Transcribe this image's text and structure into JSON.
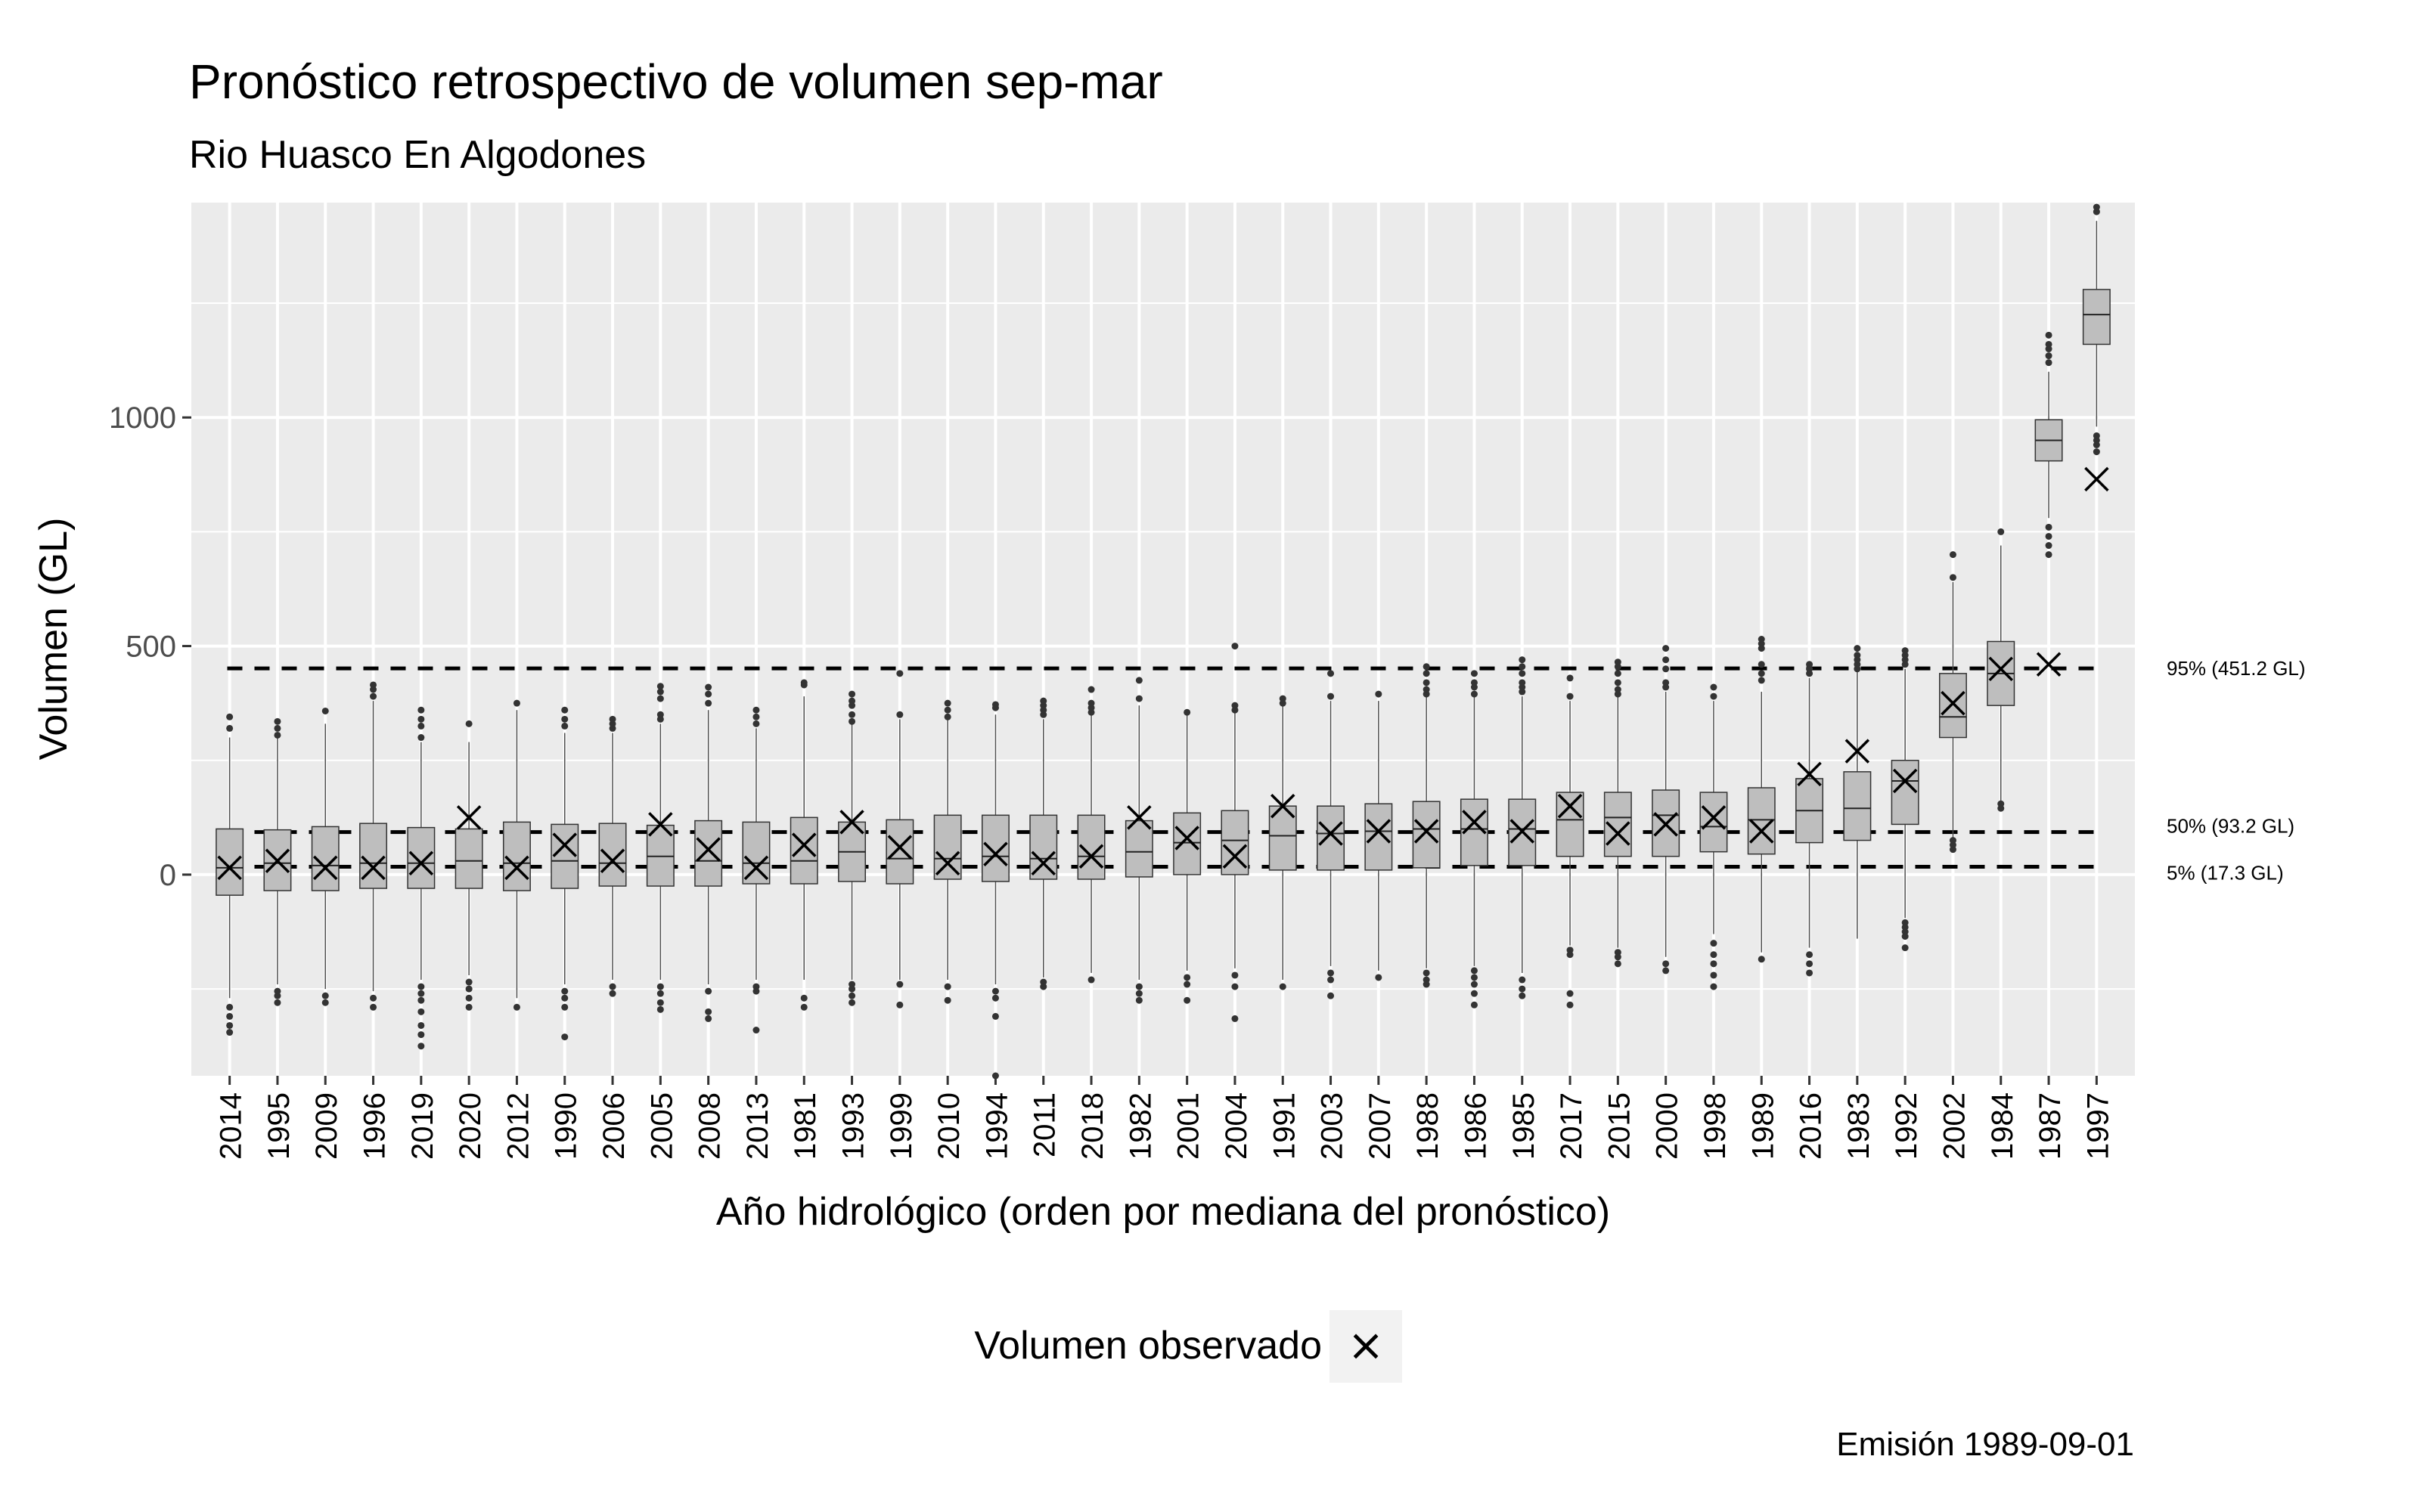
{
  "chart_data": {
    "type": "boxplot",
    "title": "Pronóstico retrospectivo de volumen sep-mar",
    "subtitle": "Rio Huasco En Algodones",
    "xlabel": "Año hidrológico (orden por mediana del pronóstico)",
    "ylabel": "Volumen (GL)",
    "caption": "Emisión 1989-09-01",
    "ylim": [
      -440,
      1470
    ],
    "y_ticks": [
      0,
      500,
      1000
    ],
    "highlight_category": "1989",
    "highlight_color": "#ff0000",
    "box_fill": "#bebebe",
    "panel_bg": "#ebebeb",
    "grid_color": "#ffffff",
    "legend": {
      "position": "bottom",
      "label": "Volumen observado",
      "symbol": "×"
    },
    "reference_lines": [
      {
        "label": "95% (451.2 GL)",
        "value": 451.2
      },
      {
        "label": "50% (93.2 GL)",
        "value": 93.2
      },
      {
        "label": "5% (17.3 GL)",
        "value": 17.3
      }
    ],
    "categories": [
      "2014",
      "1995",
      "2009",
      "1996",
      "2019",
      "2020",
      "2012",
      "1990",
      "2006",
      "2005",
      "2008",
      "2013",
      "1981",
      "1993",
      "1999",
      "2010",
      "1994",
      "2011",
      "2018",
      "1982",
      "2001",
      "2004",
      "1991",
      "2003",
      "2007",
      "1988",
      "1986",
      "1985",
      "2017",
      "2015",
      "2000",
      "1998",
      "1989",
      "2016",
      "1983",
      "1992",
      "2002",
      "1984",
      "1987",
      "1997"
    ],
    "boxes": [
      {
        "q1": -45,
        "median": 15,
        "q3": 100,
        "wlo": -270,
        "whi": 300,
        "out": [
          -290,
          -310,
          -330,
          -345,
          320,
          345
        ]
      },
      {
        "q1": -35,
        "median": 25,
        "q3": 98,
        "wlo": -240,
        "whi": 300,
        "out": [
          -255,
          -265,
          -280,
          305,
          320,
          335
        ]
      },
      {
        "q1": -35,
        "median": 20,
        "q3": 105,
        "wlo": -250,
        "whi": 330,
        "out": [
          -265,
          -280,
          358
        ]
      },
      {
        "q1": -30,
        "median": 25,
        "q3": 112,
        "wlo": -255,
        "whi": 380,
        "out": [
          -270,
          -290,
          390,
          405,
          415
        ]
      },
      {
        "q1": -30,
        "median": 25,
        "q3": 103,
        "wlo": -230,
        "whi": 290,
        "out": [
          -245,
          -260,
          -275,
          -300,
          -330,
          -350,
          -375,
          300,
          325,
          340,
          360
        ]
      },
      {
        "q1": -30,
        "median": 30,
        "q3": 100,
        "wlo": -220,
        "whi": 290,
        "out": [
          -235,
          -250,
          -270,
          -290,
          330
        ]
      },
      {
        "q1": -35,
        "median": 25,
        "q3": 115,
        "wlo": -270,
        "whi": 360,
        "out": [
          -290,
          375
        ]
      },
      {
        "q1": -30,
        "median": 30,
        "q3": 110,
        "wlo": -240,
        "whi": 310,
        "out": [
          -255,
          -270,
          -290,
          -355,
          325,
          340,
          360
        ]
      },
      {
        "q1": -25,
        "median": 25,
        "q3": 112,
        "wlo": -230,
        "whi": 310,
        "out": [
          -245,
          -260,
          320,
          330,
          340
        ]
      },
      {
        "q1": -25,
        "median": 40,
        "q3": 108,
        "wlo": -230,
        "whi": 330,
        "out": [
          -245,
          -260,
          -280,
          -295,
          340,
          350,
          385,
          400,
          412
        ]
      },
      {
        "q1": -25,
        "median": 30,
        "q3": 118,
        "wlo": -240,
        "whi": 360,
        "out": [
          -255,
          -300,
          -315,
          375,
          395,
          410
        ]
      },
      {
        "q1": -20,
        "median": 25,
        "q3": 115,
        "wlo": -230,
        "whi": 320,
        "out": [
          -245,
          -255,
          -340,
          330,
          345,
          360
        ]
      },
      {
        "q1": -20,
        "median": 30,
        "q3": 125,
        "wlo": -230,
        "whi": 390,
        "out": [
          -270,
          -290,
          415,
          420
        ]
      },
      {
        "q1": -15,
        "median": 50,
        "q3": 115,
        "wlo": -230,
        "whi": 330,
        "out": [
          -240,
          -250,
          -265,
          -280,
          335,
          350,
          370,
          380,
          395
        ]
      },
      {
        "q1": -20,
        "median": 35,
        "q3": 120,
        "wlo": -230,
        "whi": 340,
        "out": [
          -240,
          -285,
          350,
          440
        ]
      },
      {
        "q1": -10,
        "median": 35,
        "q3": 130,
        "wlo": -230,
        "whi": 340,
        "out": [
          -245,
          -275,
          345,
          360,
          375
        ]
      },
      {
        "q1": -15,
        "median": 40,
        "q3": 130,
        "wlo": -240,
        "whi": 350,
        "out": [
          -255,
          -270,
          -310,
          -440,
          365,
          372
        ]
      },
      {
        "q1": -10,
        "median": 35,
        "q3": 130,
        "wlo": -225,
        "whi": 340,
        "out": [
          -235,
          -245,
          350,
          360,
          370,
          380
        ]
      },
      {
        "q1": -10,
        "median": 40,
        "q3": 130,
        "wlo": -215,
        "whi": 350,
        "out": [
          -230,
          355,
          365,
          375,
          405
        ]
      },
      {
        "q1": -5,
        "median": 50,
        "q3": 118,
        "wlo": -230,
        "whi": 370,
        "out": [
          -245,
          -260,
          -275,
          385,
          425
        ]
      },
      {
        "q1": 0,
        "median": 70,
        "q3": 135,
        "wlo": -210,
        "whi": 350,
        "out": [
          -225,
          -240,
          -275,
          355
        ]
      },
      {
        "q1": 0,
        "median": 75,
        "q3": 140,
        "wlo": -205,
        "whi": 355,
        "out": [
          -220,
          -245,
          -315,
          360,
          370,
          500
        ]
      },
      {
        "q1": 10,
        "median": 85,
        "q3": 150,
        "wlo": -230,
        "whi": 370,
        "out": [
          -245,
          375,
          385
        ]
      },
      {
        "q1": 10,
        "median": 90,
        "q3": 150,
        "wlo": -200,
        "whi": 380,
        "out": [
          -215,
          -230,
          -265,
          390,
          440
        ]
      },
      {
        "q1": 10,
        "median": 95,
        "q3": 155,
        "wlo": -210,
        "whi": 380,
        "out": [
          -225,
          395
        ]
      },
      {
        "q1": 15,
        "median": 100,
        "q3": 160,
        "wlo": -205,
        "whi": 390,
        "out": [
          -215,
          -230,
          -240,
          395,
          405,
          420,
          440,
          455
        ]
      },
      {
        "q1": 20,
        "median": 100,
        "q3": 165,
        "wlo": -200,
        "whi": 390,
        "out": [
          -210,
          -225,
          -240,
          -260,
          -285,
          395,
          410,
          420,
          440
        ]
      },
      {
        "q1": 20,
        "median": 100,
        "q3": 165,
        "wlo": -215,
        "whi": 390,
        "out": [
          -230,
          -250,
          -265,
          400,
          410,
          420,
          440,
          455,
          470
        ]
      },
      {
        "q1": 40,
        "median": 120,
        "q3": 180,
        "wlo": -155,
        "whi": 380,
        "out": [
          -165,
          -175,
          -260,
          -285,
          390,
          430
        ]
      },
      {
        "q1": 40,
        "median": 125,
        "q3": 180,
        "wlo": -160,
        "whi": 390,
        "out": [
          -170,
          -180,
          -195,
          395,
          405,
          420,
          440,
          455,
          465
        ]
      },
      {
        "q1": 40,
        "median": 130,
        "q3": 185,
        "wlo": -180,
        "whi": 400,
        "out": [
          -195,
          -210,
          410,
          420,
          450,
          470,
          495
        ]
      },
      {
        "q1": 50,
        "median": 105,
        "q3": 180,
        "wlo": -130,
        "whi": 380,
        "out": [
          -150,
          -175,
          -195,
          -220,
          -245,
          390,
          410
        ]
      },
      {
        "q1": 45,
        "median": 120,
        "q3": 190,
        "wlo": -170,
        "whi": 400,
        "out": [
          -185,
          425,
          440,
          460,
          495,
          505,
          515
        ]
      },
      {
        "q1": 70,
        "median": 140,
        "q3": 210,
        "wlo": -160,
        "whi": 430,
        "out": [
          -175,
          -195,
          -215,
          440,
          450,
          460
        ]
      },
      {
        "q1": 75,
        "median": 145,
        "q3": 225,
        "wlo": -140,
        "whi": 445,
        "out": [
          450,
          460,
          470,
          480,
          495
        ]
      },
      {
        "q1": 110,
        "median": 205,
        "q3": 250,
        "wlo": -95,
        "whi": 450,
        "out": [
          -105,
          -115,
          -125,
          -135,
          -160,
          460,
          470,
          480,
          490
        ]
      },
      {
        "q1": 300,
        "median": 345,
        "q3": 440,
        "wlo": 80,
        "whi": 640,
        "out": [
          55,
          65,
          75,
          650,
          700
        ]
      },
      {
        "q1": 370,
        "median": 440,
        "q3": 510,
        "wlo": 160,
        "whi": 720,
        "out": [
          145,
          155,
          750
        ]
      },
      {
        "q1": 905,
        "median": 950,
        "q3": 995,
        "wlo": 780,
        "whi": 1100,
        "out": [
          700,
          720,
          740,
          760,
          1120,
          1135,
          1150,
          1160,
          1180
        ]
      },
      {
        "q1": 1160,
        "median": 1225,
        "q3": 1280,
        "wlo": 980,
        "whi": 1430,
        "out": [
          925,
          940,
          950,
          960,
          1450,
          1460
        ]
      }
    ],
    "observed": [
      15,
      30,
      15,
      15,
      25,
      125,
      15,
      65,
      30,
      110,
      55,
      15,
      65,
      115,
      60,
      25,
      45,
      25,
      40,
      125,
      80,
      40,
      150,
      90,
      95,
      95,
      115,
      95,
      150,
      90,
      110,
      125,
      95,
      220,
      270,
      205,
      375,
      450,
      460,
      865
    ]
  }
}
